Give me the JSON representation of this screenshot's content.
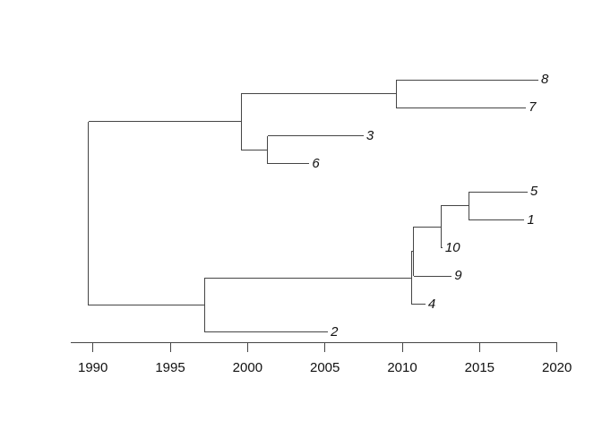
{
  "figure": {
    "background": "#ffffff",
    "line_color": "#454545",
    "text_color": "#111111"
  },
  "chart_data": {
    "type": "tree",
    "subtype": "time-scaled-phylogeny",
    "title": "",
    "xlabel": "",
    "ylabel": "",
    "newick": "(((8,7),(3,6)),(((((5,1),10),9),4),2));",
    "tip_order_top_to_bottom": [
      "8",
      "7",
      "3",
      "6",
      "5",
      "1",
      "10",
      "9",
      "4",
      "2"
    ],
    "x_axis": {
      "tick_years": [
        1990,
        1995,
        2000,
        2005,
        2010,
        2015,
        2020
      ],
      "tick_labels": [
        "1990",
        "1995",
        "2000",
        "2005",
        "2010",
        "2015",
        "2020"
      ],
      "axis_range_years": [
        1988.57,
        2020
      ],
      "grid": false,
      "position": "bottom"
    },
    "root_year": 1989.7,
    "tree": {
      "year": 1989.7,
      "children": [
        {
          "year": 1999.6,
          "children": [
            {
              "year": 2009.6,
              "children": [
                {
                  "label": "8",
                  "year": 2018.8
                },
                {
                  "label": "7",
                  "year": 2018.0
                }
              ]
            },
            {
              "year": 2001.3,
              "children": [
                {
                  "label": "3",
                  "year": 2007.5
                },
                {
                  "label": "6",
                  "year": 2004.0
                }
              ]
            }
          ]
        },
        {
          "year": 1997.2,
          "children": [
            {
              "year": 2010.6,
              "children": [
                {
                  "year": 2010.75,
                  "children": [
                    {
                      "year": 2012.5,
                      "children": [
                        {
                          "year": 2014.3,
                          "children": [
                            {
                              "label": "5",
                              "year": 2018.1
                            },
                            {
                              "label": "1",
                              "year": 2017.9
                            }
                          ]
                        },
                        {
                          "label": "10",
                          "year": 2012.6
                        }
                      ]
                    },
                    {
                      "label": "9",
                      "year": 2013.2
                    }
                  ]
                },
                {
                  "label": "4",
                  "year": 2011.5
                }
              ]
            },
            {
              "label": "2",
              "year": 2005.2
            }
          ]
        }
      ]
    }
  }
}
